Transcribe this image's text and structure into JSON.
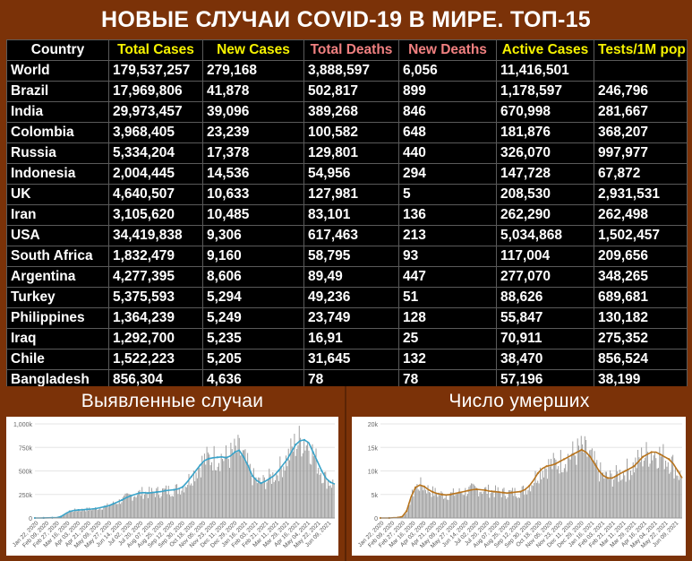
{
  "title": "НОВЫЕ СЛУЧАИ COVID-19 В МИРЕ. ТОП-15",
  "table": {
    "headers": [
      "Country",
      "Total Cases",
      "New Cases",
      "Total Deaths",
      "New Deaths",
      "Active Cases",
      "Tests/1M pop"
    ],
    "rows": [
      [
        "World",
        "179,537,257",
        "279,168",
        "3,888,597",
        "6,056",
        "11,416,501",
        ""
      ],
      [
        "Brazil",
        "17,969,806",
        "41,878",
        "502,817",
        "899",
        "1,178,597",
        "246,796"
      ],
      [
        "India",
        "29,973,457",
        "39,096",
        "389,268",
        "846",
        "670,998",
        "281,667"
      ],
      [
        "Colombia",
        "3,968,405",
        "23,239",
        "100,582",
        "648",
        "181,876",
        "368,207"
      ],
      [
        "Russia",
        "5,334,204",
        "17,378",
        "129,801",
        "440",
        "326,070",
        "997,977"
      ],
      [
        "Indonesia",
        "2,004,445",
        "14,536",
        "54,956",
        "294",
        "147,728",
        "67,872"
      ],
      [
        "UK",
        "4,640,507",
        "10,633",
        "127,981",
        "5",
        "208,530",
        "2,931,531"
      ],
      [
        "Iran",
        "3,105,620",
        "10,485",
        "83,101",
        "136",
        "262,290",
        "262,498"
      ],
      [
        "USA",
        "34,419,838",
        "9,306",
        "617,463",
        "213",
        "5,034,868",
        "1,502,457"
      ],
      [
        "South Africa",
        "1,832,479",
        "9,160",
        "58,795",
        "93",
        "117,004",
        "209,656"
      ],
      [
        "Argentina",
        "4,277,395",
        "8,606",
        "89,49",
        "447",
        "277,070",
        "348,265"
      ],
      [
        "Turkey",
        "5,375,593",
        "5,294",
        "49,236",
        "51",
        "88,626",
        "689,681"
      ],
      [
        "Philippines",
        "1,364,239",
        "5,249",
        "23,749",
        "128",
        "55,847",
        "130,182"
      ],
      [
        "Iraq",
        "1,292,700",
        "5,235",
        "16,91",
        "25",
        "70,911",
        "275,352"
      ],
      [
        "Chile",
        "1,522,223",
        "5,205",
        "31,645",
        "132",
        "38,470",
        "856,524"
      ],
      [
        "Bangladesh",
        "856,304",
        "4,636",
        "78",
        "78",
        "57,196",
        "38,199"
      ]
    ]
  },
  "colors": {
    "background": "#7b3208",
    "header_white": "#ffffff",
    "header_yellow": "#f6f200",
    "header_pink": "#f08080",
    "cases_line": "#3aa3c9",
    "deaths_line": "#b8741d",
    "bars": "#9a9a9a"
  },
  "chart_data": [
    {
      "type": "bar",
      "title": "Выявленные случаи",
      "ylim": [
        0,
        1000000
      ],
      "yticks": [
        "0",
        "250k",
        "500k",
        "750k",
        "1,000k"
      ],
      "ytick_values": [
        0,
        250000,
        500000,
        750000,
        1000000
      ],
      "xticks": [
        "Jan 22, 2020",
        "Feb 09, 2020",
        "Feb 27, 2020",
        "Mar 16, 2020",
        "Apr 03, 2020",
        "Apr 21, 2020",
        "May 09, 2020",
        "May 27, 2020",
        "Jun 14, 2020",
        "Jul 02, 2020",
        "Jul 20, 2020",
        "Aug 07, 2020",
        "Aug 25, 2020",
        "Sep 12, 2020",
        "Sep 30, 2020",
        "Oct 18, 2020",
        "Nov 05, 2020",
        "Nov 23, 2020",
        "Dec 11, 2020",
        "Dec 29, 2020",
        "Jan 16, 2021",
        "Feb 03, 2021",
        "Feb 21, 2021",
        "Mar 11, 2021",
        "Mar 29, 2021",
        "Apr 16, 2021",
        "May 04, 2021",
        "May 22, 2021",
        "Jun 09, 2021"
      ],
      "series": [
        {
          "values": [
            0,
            0,
            1000,
            2000,
            2500,
            3000,
            15000,
            45000,
            70000,
            80000,
            85000,
            88000,
            92000,
            95000,
            100000,
            110000,
            120000,
            130000,
            150000,
            170000,
            190000,
            215000,
            235000,
            250000,
            265000,
            270000,
            265000,
            270000,
            275000,
            280000,
            290000,
            295000,
            300000,
            310000,
            330000,
            380000,
            440000,
            500000,
            560000,
            610000,
            630000,
            640000,
            645000,
            650000,
            640000,
            660000,
            700000,
            720000,
            650000,
            560000,
            450000,
            400000,
            370000,
            390000,
            420000,
            450000,
            500000,
            560000,
            620000,
            700000,
            780000,
            820000,
            830000,
            800000,
            700000,
            600000,
            500000,
            420000,
            380000,
            360000
          ]
        }
      ]
    },
    {
      "type": "bar",
      "title": "Число умерших",
      "ylim": [
        0,
        20000
      ],
      "yticks": [
        "0",
        "5k",
        "10k",
        "15k",
        "20k"
      ],
      "ytick_values": [
        0,
        5000,
        10000,
        15000,
        20000
      ],
      "xticks": [
        "Jan 22, 2020",
        "Feb 09, 2020",
        "Feb 27, 2020",
        "Mar 16, 2020",
        "Apr 03, 2020",
        "Apr 21, 2020",
        "May 09, 2020",
        "May 27, 2020",
        "Jun 14, 2020",
        "Jul 02, 2020",
        "Jul 20, 2020",
        "Aug 07, 2020",
        "Aug 25, 2020",
        "Sep 12, 2020",
        "Sep 30, 2020",
        "Oct 18, 2020",
        "Nov 05, 2020",
        "Nov 23, 2020",
        "Dec 11, 2020",
        "Dec 29, 2020",
        "Jan 16, 2021",
        "Feb 03, 2021",
        "Feb 21, 2021",
        "Mar 11, 2021",
        "Mar 29, 2021",
        "Apr 16, 2021",
        "May 04, 2021",
        "May 22, 2021",
        "Jun 09, 2021"
      ],
      "series": [
        {
          "values": [
            0,
            0,
            0,
            50,
            100,
            300,
            1500,
            4500,
            6500,
            7000,
            6700,
            6000,
            5500,
            5200,
            5000,
            4900,
            5000,
            5200,
            5400,
            5600,
            5800,
            6000,
            6100,
            6000,
            5900,
            5700,
            5600,
            5500,
            5400,
            5300,
            5400,
            5500,
            5600,
            6000,
            6800,
            8000,
            9500,
            10500,
            11000,
            11200,
            11500,
            12000,
            12500,
            13000,
            13500,
            14000,
            14500,
            14000,
            13000,
            11500,
            10000,
            9000,
            8500,
            8500,
            9000,
            9500,
            10000,
            10500,
            11000,
            12000,
            13000,
            13500,
            14000,
            14000,
            13500,
            13000,
            12500,
            11500,
            10000,
            8500
          ]
        }
      ]
    }
  ]
}
